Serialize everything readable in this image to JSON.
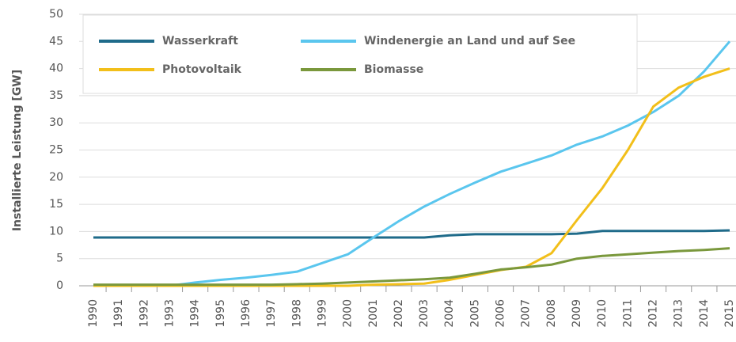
{
  "chart_data": {
    "type": "line",
    "y_label": "Installierte Leistung [GW]",
    "categories": [
      "1990",
      "1991",
      "1992",
      "1993",
      "1994",
      "1995",
      "1996",
      "1997",
      "1998",
      "1999",
      "2000",
      "2001",
      "2002",
      "2003",
      "2004",
      "2005",
      "2006",
      "2007",
      "2008",
      "2009",
      "2010",
      "2011",
      "2012",
      "2013",
      "2014",
      "2015"
    ],
    "series": [
      {
        "name": "Wasserkraft",
        "color": "#1f6b8a",
        "values": [
          8.9,
          8.9,
          8.9,
          8.9,
          8.9,
          8.9,
          8.9,
          8.9,
          8.9,
          8.9,
          8.9,
          8.9,
          8.9,
          8.9,
          9.3,
          9.5,
          9.5,
          9.5,
          9.5,
          9.6,
          10.1,
          10.1,
          10.1,
          10.1,
          10.1,
          10.2
        ]
      },
      {
        "name": "Windenergie an Land und auf See",
        "color": "#5ac6ee",
        "values": [
          0,
          0,
          0,
          0,
          0.6,
          1.1,
          1.5,
          2.0,
          2.6,
          4.2,
          5.8,
          8.9,
          11.9,
          14.6,
          16.9,
          19.0,
          21.0,
          22.5,
          24.0,
          26.0,
          27.5,
          29.5,
          32.0,
          35.0,
          39.5,
          45.0
        ]
      },
      {
        "name": "Photovoltaik",
        "color": "#f2bf1a",
        "values": [
          0,
          0,
          0,
          0,
          0,
          0,
          0,
          0,
          0,
          0,
          0,
          0.2,
          0.3,
          0.4,
          1.1,
          2.0,
          2.9,
          3.5,
          6.0,
          12.1,
          18.0,
          25.0,
          33.0,
          36.5,
          38.5,
          40.0
        ]
      },
      {
        "name": "Biomasse",
        "color": "#7a983c",
        "values": [
          0.2,
          0.2,
          0.2,
          0.2,
          0.2,
          0.2,
          0.2,
          0.2,
          0.3,
          0.4,
          0.6,
          0.8,
          1.0,
          1.2,
          1.5,
          2.2,
          3.0,
          3.4,
          3.9,
          5.0,
          5.5,
          5.8,
          6.1,
          6.4,
          6.6,
          6.9
        ]
      }
    ],
    "ylim": [
      0,
      50
    ],
    "yticks": [
      0,
      5,
      10,
      15,
      20,
      25,
      30,
      35,
      40,
      45,
      50
    ],
    "grid": true
  }
}
